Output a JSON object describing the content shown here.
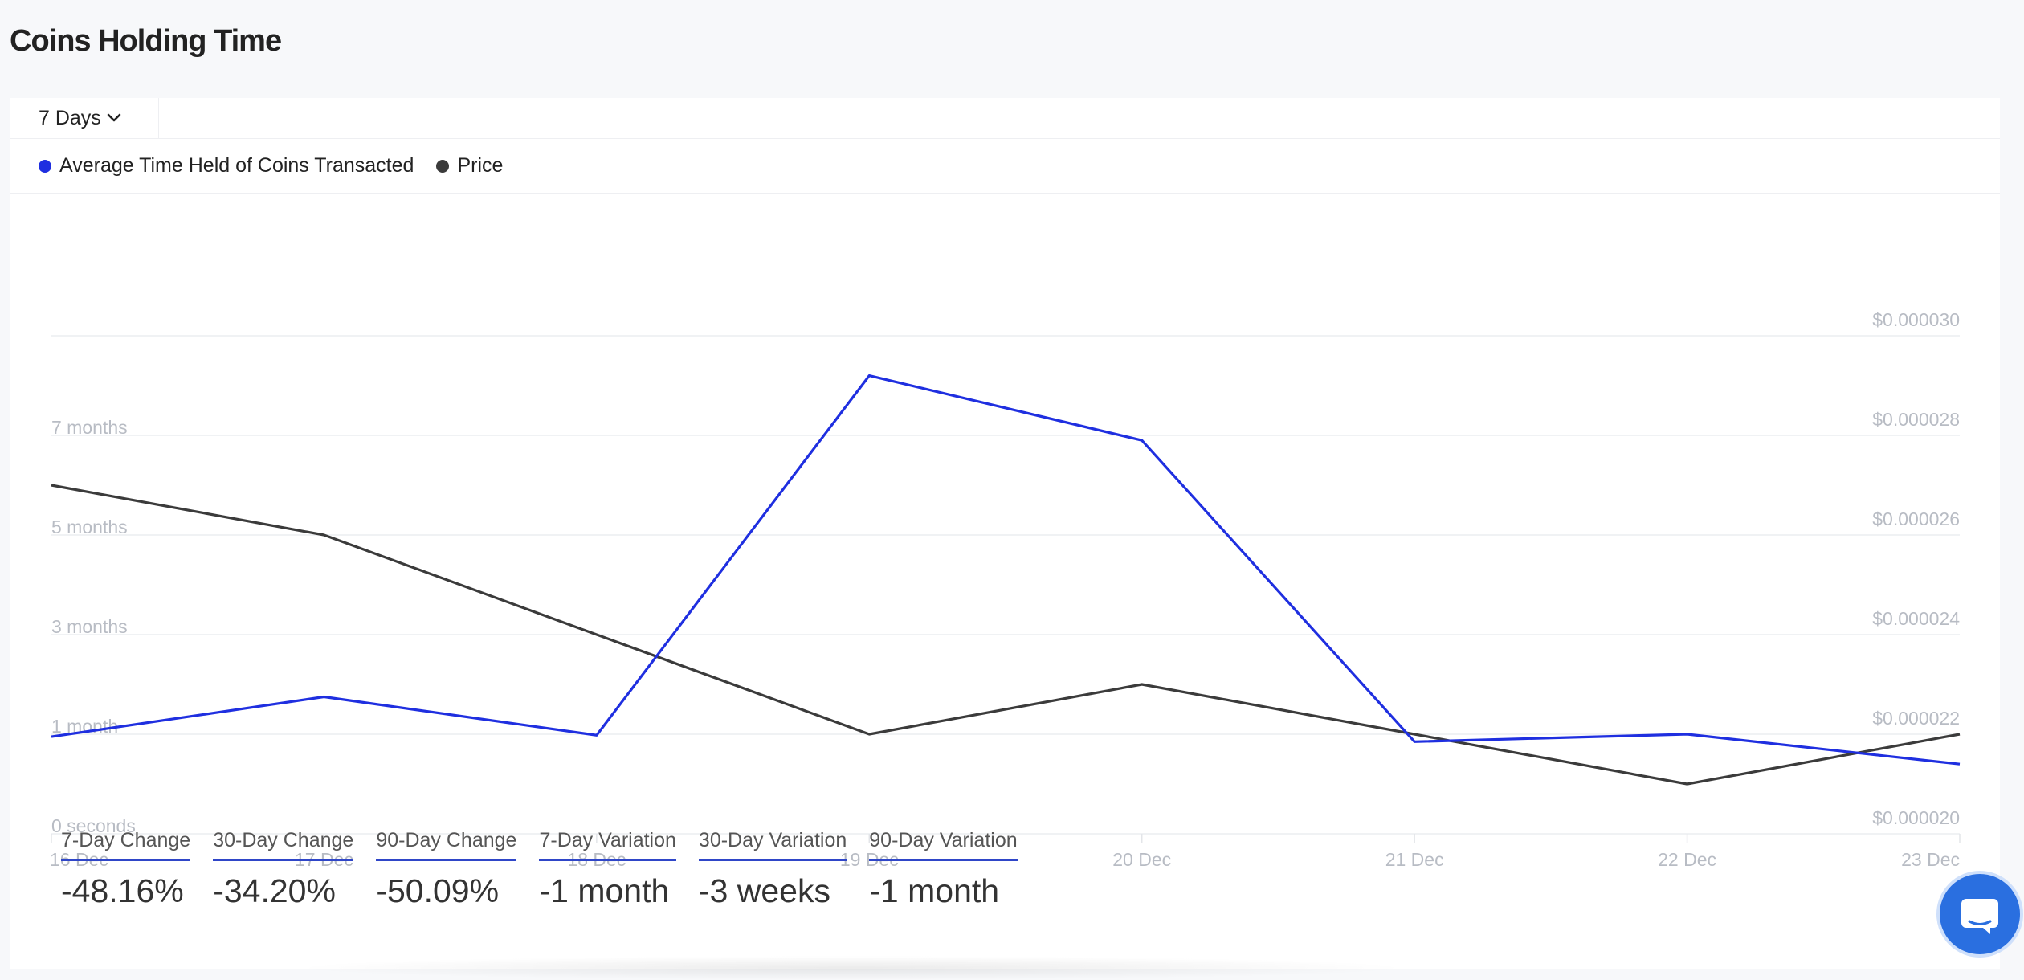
{
  "page": {
    "title": "Coins Holding Time"
  },
  "toolbar": {
    "range_label": "7 Days",
    "chevron_icon": "chevron-down-icon"
  },
  "legend": [
    {
      "label": "Average Time Held of Coins Transacted",
      "color": "#1f2fe0"
    },
    {
      "label": "Price",
      "color": "#3b3b3b"
    }
  ],
  "chart_data": {
    "type": "line",
    "categories": [
      "16 Dec",
      "17 Dec",
      "18 Dec",
      "19 Dec",
      "20 Dec",
      "21 Dec",
      "22 Dec",
      "23 Dec"
    ],
    "left_axis": {
      "tick_labels": [
        "0 seconds",
        "1 month",
        "3 months",
        "5 months",
        "7 months"
      ],
      "ylim": [
        0,
        10
      ]
    },
    "right_axis": {
      "tick_labels": [
        "$0.000020",
        "$0.000022",
        "$0.000024",
        "$0.000026",
        "$0.000028",
        "$0.000030"
      ],
      "ylim": [
        2e-05,
        3e-05
      ]
    },
    "series": [
      {
        "name": "Average Time Held of Coins Transacted",
        "axis": "left",
        "color": "#1f2fe0",
        "values": [
          1.95,
          2.75,
          1.98,
          9.2,
          7.9,
          1.85,
          2.0,
          1.4
        ]
      },
      {
        "name": "Price",
        "axis": "right",
        "color": "#3b3b3b",
        "values": [
          2.7e-05,
          2.6e-05,
          2.4e-05,
          2.2e-05,
          2.3e-05,
          2.2e-05,
          2.1e-05,
          2.2e-05
        ]
      }
    ],
    "grid": true,
    "legend_position": "top-left"
  },
  "stats": [
    {
      "label": "7-Day Change",
      "value": "-48.16%"
    },
    {
      "label": "30-Day Change",
      "value": "-34.20%"
    },
    {
      "label": "90-Day Change",
      "value": "-50.09%"
    },
    {
      "label": "7-Day Variation",
      "value": "-1 month"
    },
    {
      "label": "30-Day Variation",
      "value": "-3 weeks"
    },
    {
      "label": "90-Day Variation",
      "value": "-1 month"
    }
  ],
  "chat": {
    "icon": "chat-bubble-icon",
    "color": "#2a6fe0"
  }
}
